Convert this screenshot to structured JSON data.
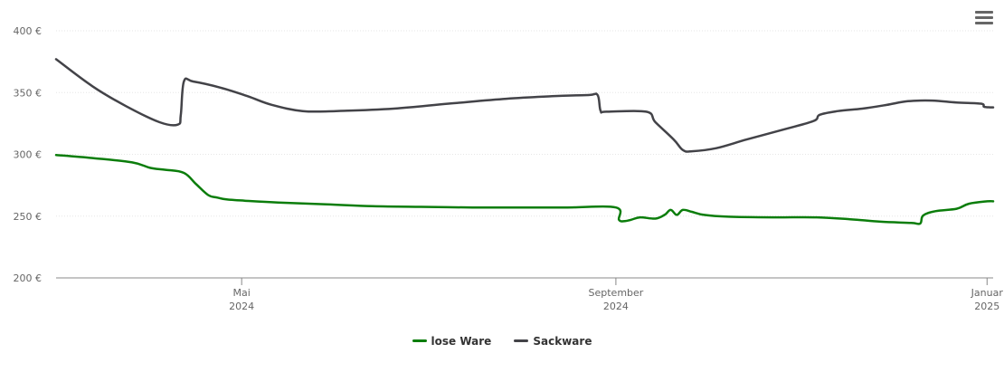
{
  "chart_data": {
    "type": "line",
    "y_ticks": [
      "400 €",
      "350 €",
      "300 €",
      "250 €",
      "200 €"
    ],
    "ylim": [
      200,
      400
    ],
    "x_ticks": [
      {
        "line1": "Mai",
        "line2": "2024"
      },
      {
        "line1": "September",
        "line2": "2024"
      },
      {
        "line1": "Januar",
        "line2": "2025"
      }
    ],
    "x_tick_dates": [
      "2024-05-01",
      "2024-09-01",
      "2025-01-01"
    ],
    "xlim": [
      "2024-03-01",
      "2025-01-03"
    ],
    "grid": true,
    "legend_position": "bottom-center",
    "series": [
      {
        "name": "lose Ware",
        "color": "#0b7d0b",
        "points": [
          [
            "2024-03-01",
            299.5
          ],
          [
            "2024-03-13",
            297
          ],
          [
            "2024-03-26",
            293.5
          ],
          [
            "2024-04-01",
            289
          ],
          [
            "2024-04-06",
            287.5
          ],
          [
            "2024-04-12",
            285
          ],
          [
            "2024-04-16",
            276
          ],
          [
            "2024-04-20",
            267
          ],
          [
            "2024-04-23",
            265
          ],
          [
            "2024-04-26",
            263.5
          ],
          [
            "2024-05-02",
            262.5
          ],
          [
            "2024-05-13",
            261
          ],
          [
            "2024-05-29",
            259.5
          ],
          [
            "2024-06-13",
            258
          ],
          [
            "2024-06-29",
            257.5
          ],
          [
            "2024-07-16",
            257
          ],
          [
            "2024-08-01",
            257
          ],
          [
            "2024-08-16",
            257
          ],
          [
            "2024-09-01",
            257
          ],
          [
            "2024-09-02",
            247
          ],
          [
            "2024-09-04",
            246
          ],
          [
            "2024-09-06",
            247
          ],
          [
            "2024-09-09",
            249
          ],
          [
            "2024-09-14",
            248
          ],
          [
            "2024-09-17",
            251
          ],
          [
            "2024-09-19",
            255
          ],
          [
            "2024-09-21",
            251
          ],
          [
            "2024-09-23",
            255
          ],
          [
            "2024-09-26",
            253.5
          ],
          [
            "2024-09-30",
            251
          ],
          [
            "2024-10-08",
            249.5
          ],
          [
            "2024-10-23",
            249
          ],
          [
            "2024-11-06",
            249
          ],
          [
            "2024-11-17",
            247.5
          ],
          [
            "2024-11-27",
            245.5
          ],
          [
            "2024-12-07",
            244.5
          ],
          [
            "2024-12-10",
            244
          ],
          [
            "2024-12-11",
            250.5
          ],
          [
            "2024-12-15",
            254
          ],
          [
            "2024-12-22",
            256
          ],
          [
            "2024-12-26",
            260
          ],
          [
            "2025-01-01",
            262
          ],
          [
            "2025-01-03",
            262
          ]
        ]
      },
      {
        "name": "Sackware",
        "color": "#434348",
        "points": [
          [
            "2024-03-01",
            377
          ],
          [
            "2024-03-13",
            355
          ],
          [
            "2024-03-24",
            339
          ],
          [
            "2024-04-04",
            326
          ],
          [
            "2024-04-10",
            324
          ],
          [
            "2024-04-11",
            332
          ],
          [
            "2024-04-12",
            359
          ],
          [
            "2024-04-15",
            359
          ],
          [
            "2024-04-24",
            354
          ],
          [
            "2024-05-03",
            347
          ],
          [
            "2024-05-11",
            340
          ],
          [
            "2024-05-21",
            335
          ],
          [
            "2024-06-01",
            335
          ],
          [
            "2024-06-20",
            337
          ],
          [
            "2024-07-08",
            341
          ],
          [
            "2024-07-27",
            345
          ],
          [
            "2024-08-11",
            347
          ],
          [
            "2024-08-23",
            348
          ],
          [
            "2024-08-26",
            348
          ],
          [
            "2024-08-27",
            335
          ],
          [
            "2024-08-29",
            334.5
          ],
          [
            "2024-09-11",
            334.5
          ],
          [
            "2024-09-14",
            326
          ],
          [
            "2024-09-20",
            312
          ],
          [
            "2024-09-23",
            303.5
          ],
          [
            "2024-09-26",
            302.5
          ],
          [
            "2024-10-04",
            305
          ],
          [
            "2024-10-14",
            312
          ],
          [
            "2024-10-26",
            320
          ],
          [
            "2024-11-05",
            327
          ],
          [
            "2024-11-07",
            332
          ],
          [
            "2024-11-13",
            335
          ],
          [
            "2024-11-21",
            337
          ],
          [
            "2024-11-29",
            340
          ],
          [
            "2024-12-06",
            343
          ],
          [
            "2024-12-14",
            343.5
          ],
          [
            "2024-12-22",
            342
          ],
          [
            "2024-12-30",
            341
          ],
          [
            "2024-12-31",
            338.5
          ],
          [
            "2025-01-02",
            338
          ],
          [
            "2025-01-03",
            338
          ]
        ]
      }
    ]
  },
  "legend": {
    "item1": "lose Ware",
    "item2": "Sackware"
  },
  "menu_icon": "hamburger-menu-icon"
}
